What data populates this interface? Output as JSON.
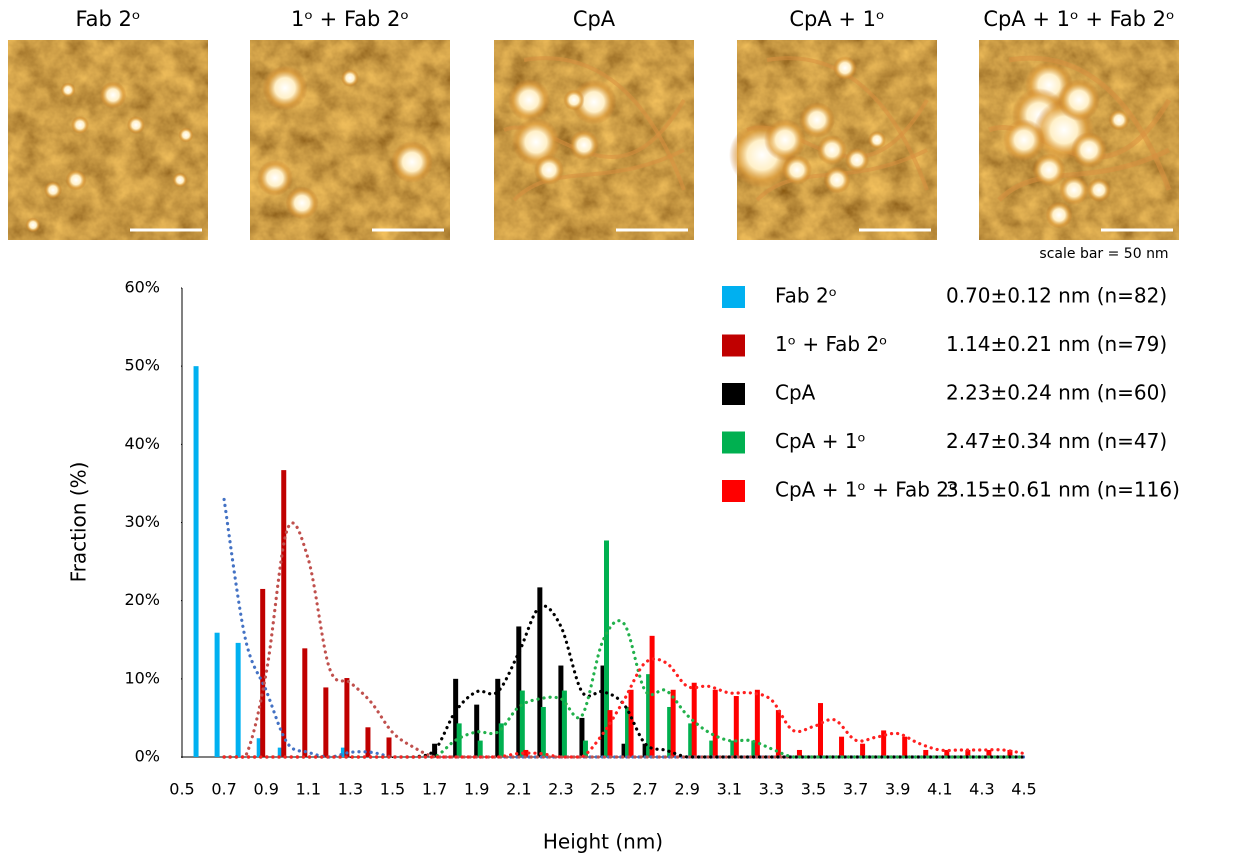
{
  "images": [
    {
      "title": "Fab 2ᵒ"
    },
    {
      "title": "1ᵒ + Fab 2ᵒ"
    },
    {
      "title": "CpA"
    },
    {
      "title": "CpA + 1ᵒ"
    },
    {
      "title": "CpA + 1ᵒ + Fab 2ᵒ"
    }
  ],
  "scale_note": "scale bar = 50 nm",
  "chart_data": {
    "type": "bar",
    "x_label": "Height (nm)",
    "y_label": "Fraction (%)",
    "x": [
      0.6,
      0.7,
      0.8,
      0.9,
      1.0,
      1.1,
      1.2,
      1.3,
      1.4,
      1.5,
      1.6,
      1.7,
      1.8,
      1.9,
      2.0,
      2.1,
      2.2,
      2.3,
      2.4,
      2.5,
      2.6,
      2.7,
      2.8,
      2.9,
      3.0,
      3.1,
      3.2,
      3.3,
      3.4,
      3.5,
      3.6,
      3.7,
      3.8,
      3.9,
      4.0,
      4.1,
      4.2,
      4.3,
      4.4,
      4.5
    ],
    "xlim": [
      0.5,
      4.5
    ],
    "xticks": [
      0.5,
      0.7,
      0.9,
      1.1,
      1.3,
      1.5,
      1.7,
      1.9,
      2.1,
      2.3,
      2.5,
      2.7,
      2.9,
      3.1,
      3.3,
      3.5,
      3.7,
      3.9,
      4.1,
      4.3,
      4.5
    ],
    "ylim": [
      0,
      60
    ],
    "yticks": [
      {
        "value": 0,
        "label": "0%"
      },
      {
        "value": 10,
        "label": "10%"
      },
      {
        "value": 20,
        "label": "20%"
      },
      {
        "value": 30,
        "label": "30%"
      },
      {
        "value": 40,
        "label": "40%"
      },
      {
        "value": 50,
        "label": "50%"
      },
      {
        "value": 60,
        "label": "60%"
      }
    ],
    "grid": false,
    "legend": "top-right",
    "trendline": {
      "type": "moving-average",
      "period": 2,
      "style": "dotted"
    },
    "series": [
      {
        "name": "Fab 2ᵒ",
        "stats": "0.70±0.12 nm (n=82)",
        "color": "#00b0f0",
        "trendline_color": "#4472c4",
        "values": [
          50,
          15.9,
          14.6,
          2.4,
          1.2,
          0,
          0,
          1.2,
          0,
          0,
          0,
          0,
          0,
          0,
          0,
          0,
          0,
          0,
          0,
          0,
          0,
          0,
          0,
          0,
          0,
          0,
          0,
          0,
          0,
          0,
          0,
          0,
          0,
          0,
          0,
          0,
          0,
          0,
          0,
          0
        ]
      },
      {
        "name": "1ᵒ + Fab 2ᵒ",
        "stats": "1.14±0.21 nm (n=79)",
        "color": "#c00000",
        "trendline_color": "#c0504d",
        "values": [
          0,
          0,
          0,
          21.5,
          36.7,
          13.9,
          8.9,
          10.1,
          3.8,
          2.5,
          0,
          0,
          0,
          0,
          0,
          0,
          0,
          0,
          0,
          0,
          0,
          0,
          0,
          0,
          0,
          0,
          0,
          0,
          0,
          0,
          0,
          0,
          0,
          0,
          0,
          0,
          0,
          0,
          0,
          0
        ]
      },
      {
        "name": "CpA",
        "stats": "2.23±0.24 nm (n=60)",
        "color": "#000000",
        "trendline_color": "#000000",
        "values": [
          0,
          0,
          0,
          0,
          0,
          0,
          0,
          0,
          0,
          0,
          0,
          1.7,
          10,
          6.7,
          10,
          16.7,
          21.7,
          11.7,
          5,
          11.7,
          1.7,
          1.7,
          0,
          0,
          0,
          0,
          0,
          0,
          0,
          0,
          0,
          0,
          0,
          0,
          0,
          0,
          0,
          0,
          0,
          0
        ]
      },
      {
        "name": "CpA + 1ᵒ",
        "stats": "2.47±0.34 nm (n=47)",
        "color": "#00b050",
        "trendline_color": "#22b14c",
        "values": [
          0,
          0,
          0,
          0,
          0,
          0,
          0,
          0,
          0,
          0,
          0,
          0,
          4.3,
          2.1,
          4.3,
          8.5,
          6.4,
          8.5,
          2.1,
          27.7,
          6.4,
          10.6,
          6.4,
          4.3,
          2.1,
          2.1,
          2.1,
          0,
          0,
          0,
          0,
          0,
          0,
          0,
          0,
          0,
          0,
          0,
          0,
          0
        ]
      },
      {
        "name": "CpA + 1ᵒ + Fab 2ᵒ",
        "stats": "3.15±0.61 nm (n=116)",
        "color": "#ff0000",
        "trendline_color": "#ff2020",
        "values": [
          0,
          0,
          0,
          0,
          0,
          0,
          0,
          0,
          0,
          0,
          0,
          0,
          0,
          0,
          0,
          0.9,
          0,
          0,
          0,
          6,
          8.6,
          15.5,
          8.6,
          9.5,
          8.6,
          7.8,
          8.6,
          6,
          0.9,
          6.9,
          2.6,
          1.7,
          3.4,
          2.6,
          0.9,
          0.9,
          0.9,
          0.9,
          0.9,
          0
        ]
      }
    ]
  }
}
